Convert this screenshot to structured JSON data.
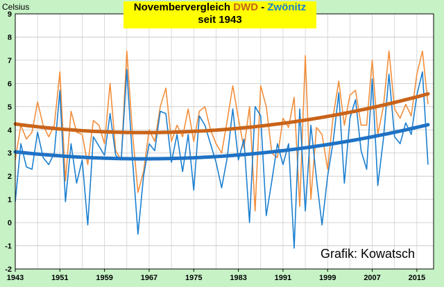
{
  "chart_data": {
    "type": "line",
    "title": {
      "part1": "Novembervergleich",
      "part2": "DWD",
      "part3": "-",
      "part4": "Zwönitz",
      "line2": "seit 1943"
    },
    "ylabel": "Celsius",
    "xlabel": "",
    "ylim": [
      -2,
      9
    ],
    "yticks": [
      -2,
      -1,
      0,
      1,
      2,
      3,
      4,
      5,
      6,
      7,
      8,
      9
    ],
    "xlim": [
      1943,
      2018
    ],
    "xticks": [
      1943,
      1951,
      1959,
      1967,
      1975,
      1983,
      1991,
      1999,
      2007,
      2015
    ],
    "grid": true,
    "annotation": "Grafik: Kowatsch",
    "x": [
      1943,
      1944,
      1945,
      1946,
      1947,
      1948,
      1949,
      1950,
      1951,
      1952,
      1953,
      1954,
      1955,
      1956,
      1957,
      1958,
      1959,
      1960,
      1961,
      1962,
      1963,
      1964,
      1965,
      1966,
      1967,
      1968,
      1969,
      1970,
      1971,
      1972,
      1973,
      1974,
      1975,
      1976,
      1977,
      1978,
      1979,
      1980,
      1981,
      1982,
      1983,
      1984,
      1985,
      1986,
      1987,
      1988,
      1989,
      1990,
      1991,
      1992,
      1993,
      1994,
      1995,
      1996,
      1997,
      1998,
      1999,
      2000,
      2001,
      2002,
      2003,
      2004,
      2005,
      2006,
      2007,
      2008,
      2009,
      2010,
      2011,
      2012,
      2013,
      2014,
      2015,
      2016,
      2017
    ],
    "series": [
      {
        "name": "DWD",
        "color": "#f28e3c",
        "values": [
          2.7,
          4.2,
          3.6,
          3.9,
          5.2,
          4.2,
          3.7,
          4.2,
          6.5,
          1.8,
          4.8,
          3.9,
          3.8,
          2.5,
          4.4,
          4.2,
          3.4,
          6.0,
          3.1,
          2.7,
          7.4,
          3.9,
          1.3,
          2.2,
          4.0,
          3.5,
          5.0,
          5.8,
          3.5,
          4.2,
          3.7,
          4.9,
          3.5,
          4.8,
          5.0,
          4.0,
          3.4,
          3.0,
          4.4,
          5.9,
          4.5,
          3.2,
          5.0,
          0.5,
          5.9,
          5.0,
          3.0,
          2.8,
          4.5,
          4.1,
          5.4,
          0.7,
          7.2,
          1.0,
          4.1,
          3.8,
          2.3,
          4.6,
          6.1,
          4.2,
          5.5,
          5.7,
          4.2,
          4.2,
          7.0,
          3.8,
          5.0,
          7.4,
          4.9,
          4.5,
          5.1,
          4.6,
          6.4,
          7.4,
          5.1
        ]
      },
      {
        "name": "Zwönitz",
        "color": "#1a7fd0",
        "values": [
          0.9,
          3.4,
          2.4,
          2.3,
          3.9,
          2.8,
          2.5,
          3.0,
          5.7,
          0.9,
          3.4,
          1.7,
          2.7,
          -0.1,
          3.7,
          3.3,
          2.9,
          4.7,
          2.9,
          2.7,
          6.6,
          2.8,
          -0.5,
          2.0,
          3.4,
          3.1,
          4.8,
          4.7,
          2.6,
          3.8,
          2.2,
          3.8,
          1.4,
          4.6,
          4.2,
          3.4,
          2.6,
          1.5,
          2.8,
          4.9,
          2.7,
          3.6,
          0.0,
          5.0,
          4.6,
          0.3,
          1.8,
          3.4,
          2.5,
          3.4,
          -1.1,
          4.9,
          0.5,
          4.2,
          1.9,
          -0.1,
          2.0,
          3.5,
          5.6,
          1.7,
          4.5,
          5.3,
          3.1,
          2.3,
          6.2,
          1.6,
          3.6,
          6.4,
          3.7,
          3.4,
          4.3,
          3.8,
          5.5,
          6.5,
          2.5
        ]
      },
      {
        "name": "DWD-Trend",
        "color": "#c8641a",
        "curve": {
          "start": 4.25,
          "min": 3.88,
          "min_year": 1966,
          "end": 5.55
        }
      },
      {
        "name": "Zwönitz-Trend",
        "color": "#1f72c4",
        "curve": {
          "start": 3.05,
          "min": 2.75,
          "min_year": 1966,
          "end": 4.22
        }
      }
    ]
  }
}
